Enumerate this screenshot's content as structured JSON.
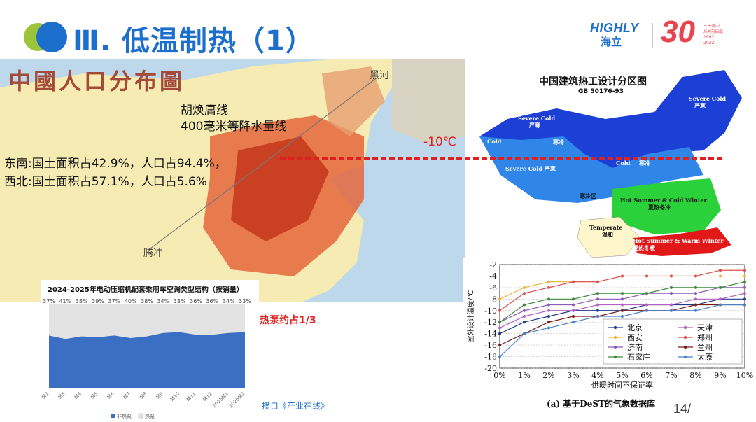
{
  "header": {
    "title": "Ⅲ. 低温制热（1）",
    "logo_en": "HIGHLY",
    "logo_cn": "海立",
    "anniv_num": "30",
    "anniv_text": [
      "三十而立",
      "从X向启航",
      "1992",
      "2022"
    ]
  },
  "population_map": {
    "title": "中國人口分布圖",
    "line_name": "胡焕庸线",
    "line_desc": "400毫米等降水量线",
    "southeast": "东南:国土面积占42.9%，人口占94.4%，",
    "northwest": "西北:国土面积占57.1%，人口占5.6%",
    "place_top": "黑河",
    "place_bottom": "腾冲"
  },
  "temp_line_label": "-10℃",
  "zone_map": {
    "title": "中国建筑热工设计分区图",
    "standard": "GB 50176-93",
    "zones": [
      {
        "en": "Severe Cold",
        "cn": "严寒"
      },
      {
        "en": "Severe Cold",
        "cn": "严寒"
      },
      {
        "en": "Cold",
        "cn": "寒冷"
      },
      {
        "en": "Severe Cold",
        "cn": "严寒"
      },
      {
        "en": "Cold",
        "cn": "寒冷"
      },
      {
        "cn": "寒冷区"
      },
      {
        "en": "Hot Summer & Cold Winter",
        "cn": "夏热冬冷"
      },
      {
        "en": "Temperate",
        "cn": "温和"
      },
      {
        "en": "Hot Summer & Warm Winter",
        "cn": "夏热冬暖"
      }
    ],
    "colors": {
      "severe": "#1c3fd6",
      "cold": "#2f86e8",
      "hscw": "#2bd13a",
      "temperate": "#fff6cc",
      "hsww": "#e01818"
    }
  },
  "market_chart": {
    "title": "2024-2025年电动压缩机配套乘用车空调类型结构（按销量）",
    "legend": [
      "非热泵",
      "热泵"
    ],
    "categories": [
      "M2",
      "M3",
      "M4",
      "M5",
      "M6",
      "M7",
      "M8",
      "M9",
      "M10",
      "M11",
      "M12",
      "2025M1",
      "2025M2"
    ],
    "heat_pump_pct_labels": [
      "37%",
      "41%",
      "38%",
      "39%",
      "37%",
      "40%",
      "38%",
      "34%",
      "33%",
      "36%",
      "36%",
      "34%",
      "33%"
    ],
    "colors": {
      "non_heat_pump": "#3a6fc4",
      "heat_pump": "#e3e3e3"
    }
  },
  "heat_pump_note": "热泵约占1/3",
  "source": "摘自《产业在线》",
  "page_number": "14/",
  "chart_data": {
    "type": "line",
    "ylabel": "室外设计温度/℃",
    "xlabel": "供暖时间不保证率",
    "caption": "(a) 基于DeST的气象数据库",
    "x": [
      "0%",
      "1%",
      "2%",
      "3%",
      "4%",
      "5%",
      "6%",
      "7%",
      "8%",
      "9%",
      "10%"
    ],
    "ylim": [
      -20,
      -2
    ],
    "yticks": [
      -2,
      -4,
      -6,
      -8,
      -10,
      -12,
      -14,
      -16,
      -18,
      -20
    ],
    "series": [
      {
        "name": "北京",
        "color": "#223a8a",
        "values": [
          -14,
          -12,
          -11,
          -10,
          -10,
          -10,
          -9,
          -9,
          -9,
          -8,
          -8
        ]
      },
      {
        "name": "天津",
        "color": "#b35fc4",
        "values": [
          -13,
          -11,
          -10,
          -10,
          -9,
          -9,
          -9,
          -9,
          -8,
          -8,
          -7
        ]
      },
      {
        "name": "西安",
        "color": "#e8b43a",
        "values": [
          -8,
          -6,
          -5,
          -5,
          -5,
          -4,
          -4,
          -4,
          -4,
          -4,
          -4
        ]
      },
      {
        "name": "郑州",
        "color": "#e05050",
        "values": [
          -10,
          -7,
          -6,
          -5,
          -5,
          -4,
          -4,
          -4,
          -4,
          -3,
          -3
        ]
      },
      {
        "name": "济南",
        "color": "#8a5ab8",
        "values": [
          -12,
          -10,
          -9,
          -9,
          -8,
          -8,
          -7,
          -7,
          -7,
          -6,
          -6
        ]
      },
      {
        "name": "兰州",
        "color": "#7a1a1a",
        "values": [
          -16,
          -14,
          -12,
          -11,
          -11,
          -10,
          -10,
          -10,
          -9,
          -9,
          -9
        ]
      },
      {
        "name": "石家庄",
        "color": "#3a8a3a",
        "values": [
          -12,
          -9,
          -8,
          -8,
          -7,
          -7,
          -7,
          -6,
          -6,
          -6,
          -5
        ]
      },
      {
        "name": "太原",
        "color": "#4a80c8",
        "values": [
          -18,
          -14,
          -13,
          -12,
          -11,
          -11,
          -10,
          -10,
          -10,
          -9,
          -9
        ]
      }
    ]
  }
}
